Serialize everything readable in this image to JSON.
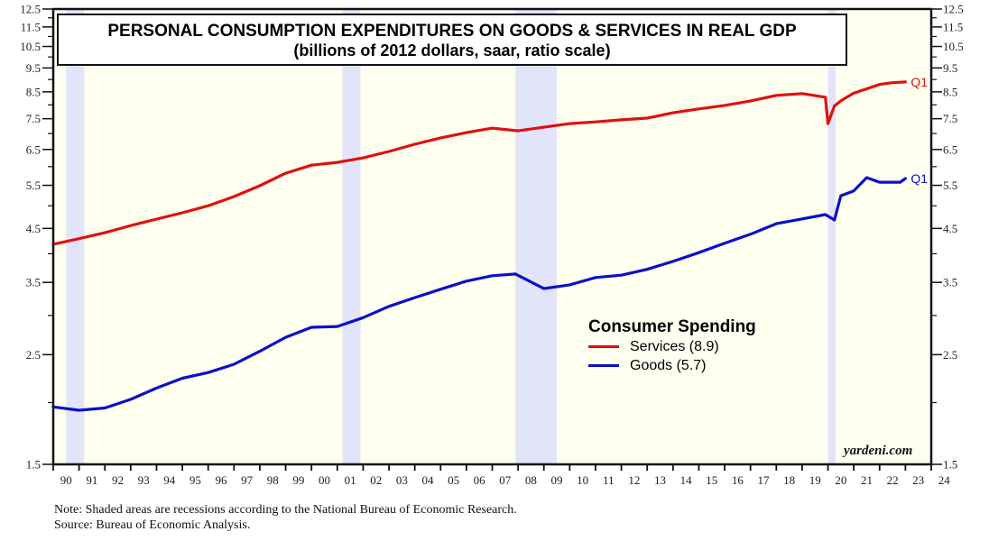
{
  "chart_data": {
    "type": "line",
    "title": "PERSONAL CONSUMPTION EXPENDITURES ON GOODS & SERVICES IN REAL GDP",
    "subtitle": "(billions of 2012 dollars, saar, ratio scale)",
    "xlabel": "",
    "ylabel": "",
    "yscale": "log",
    "ylim": [
      1.5,
      12.5
    ],
    "xlim": [
      1990,
      2024
    ],
    "y_ticks": [
      "12.5",
      "11.5",
      "10.5",
      "9.5",
      "8.5",
      "7.5",
      "6.5",
      "5.5",
      "4.5",
      "3.5",
      "2.5",
      "1.5"
    ],
    "y_tick_values": [
      12.5,
      11.5,
      10.5,
      9.5,
      8.5,
      7.5,
      6.5,
      5.5,
      4.5,
      3.5,
      2.5,
      1.5
    ],
    "y_minor_values": [
      12,
      11,
      10,
      9,
      8,
      7,
      6,
      5,
      4,
      3,
      2
    ],
    "x_ticks": [
      "90",
      "91",
      "92",
      "93",
      "94",
      "95",
      "96",
      "97",
      "98",
      "99",
      "00",
      "01",
      "02",
      "03",
      "04",
      "05",
      "06",
      "07",
      "08",
      "09",
      "10",
      "11",
      "12",
      "13",
      "14",
      "15",
      "16",
      "17",
      "18",
      "19",
      "20",
      "21",
      "22",
      "23",
      "24"
    ],
    "recessions": [
      [
        1990.5,
        1991.2
      ],
      [
        2001.2,
        2001.9
      ],
      [
        2007.9,
        2009.5
      ],
      [
        2020.0,
        2020.3
      ]
    ],
    "legend": {
      "title": "Consumer Spending",
      "position": "center-right"
    },
    "series": [
      {
        "name": "Services (8.9)",
        "color": "#e01010",
        "end_label": "Q1",
        "x": [
          1990,
          1991,
          1992,
          1993,
          1994,
          1995,
          1996,
          1997,
          1998,
          1999,
          2000,
          2001,
          2002,
          2003,
          2004,
          2005,
          2006,
          2007,
          2008,
          2009,
          2010,
          2011,
          2012,
          2013,
          2014,
          2015,
          2016,
          2017,
          2018,
          2019,
          2019.9,
          2020.0,
          2020.25,
          2020.5,
          2021,
          2021.5,
          2022,
          2022.5,
          2023
        ],
        "values": [
          4.18,
          4.29,
          4.41,
          4.56,
          4.7,
          4.84,
          5.0,
          5.22,
          5.49,
          5.82,
          6.04,
          6.12,
          6.25,
          6.44,
          6.66,
          6.86,
          7.03,
          7.18,
          7.09,
          7.21,
          7.33,
          7.39,
          7.46,
          7.52,
          7.71,
          7.85,
          7.98,
          8.15,
          8.36,
          8.43,
          8.29,
          7.33,
          7.96,
          8.15,
          8.45,
          8.62,
          8.8,
          8.87,
          8.9
        ]
      },
      {
        "name": "Goods (5.7)",
        "color": "#0a10c8",
        "end_label": "Q1",
        "x": [
          1990,
          1991,
          1992,
          1993,
          1994,
          1995,
          1996,
          1997,
          1998,
          1999,
          2000,
          2001,
          2002,
          2003,
          2004,
          2005,
          2006,
          2007,
          2007.9,
          2009,
          2010,
          2011,
          2012,
          2013,
          2014,
          2015,
          2016,
          2017,
          2018,
          2019.9,
          2020.25,
          2020.5,
          2021,
          2021.5,
          2022,
          2022.8,
          2023
        ],
        "values": [
          1.96,
          1.93,
          1.95,
          2.03,
          2.14,
          2.24,
          2.3,
          2.39,
          2.54,
          2.71,
          2.84,
          2.85,
          2.97,
          3.13,
          3.26,
          3.39,
          3.52,
          3.61,
          3.64,
          3.4,
          3.46,
          3.58,
          3.62,
          3.72,
          3.86,
          4.02,
          4.2,
          4.38,
          4.6,
          4.8,
          4.68,
          5.24,
          5.36,
          5.7,
          5.58,
          5.58,
          5.68
        ]
      }
    ],
    "watermark": "yardeni.com"
  },
  "notes": {
    "note": "Note: Shaded areas are recessions according to the National Bureau of Economic Research.",
    "source": "Source: Bureau of Economic Analysis."
  }
}
